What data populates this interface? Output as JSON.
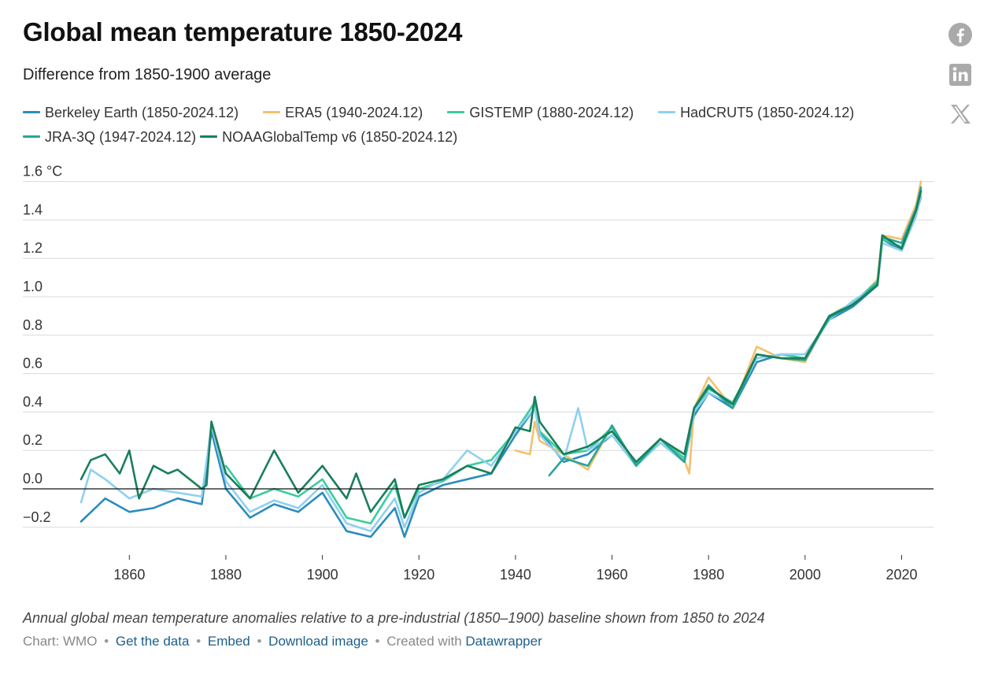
{
  "title": "Global mean temperature 1850-2024",
  "subtitle": "Difference from 1850-1900 average",
  "caption": "Annual global mean temperature anomalies relative to a pre-industrial (1850–1900) baseline shown from 1850 to 2024",
  "footer": {
    "source": "Chart: WMO",
    "get_data": "Get the data",
    "embed": "Embed",
    "download": "Download image",
    "created_with": "Created with",
    "datawrapper": "Datawrapper",
    "separator": "•"
  },
  "social": {
    "facebook_icon": "facebook-icon",
    "linkedin_icon": "linkedin-icon",
    "x_icon": "x-icon"
  },
  "legend": [
    {
      "label": "Berkeley Earth (1850-2024.12)",
      "color": "#2b8cbe"
    },
    {
      "label": "ERA5 (1940-2024.12)",
      "color": "#f5c06f"
    },
    {
      "label": "GISTEMP (1880-2024.12)",
      "color": "#3ccc9c"
    },
    {
      "label": "HadCRUT5 (1850-2024.12)",
      "color": "#8fd0f0"
    },
    {
      "label": "JRA-3Q (1947-2024.12)",
      "color": "#26a69a"
    },
    {
      "label": "NOAAGlobalTemp v6 (1850-2024.12)",
      "color": "#1a7f5a"
    }
  ],
  "chart_data": {
    "type": "line",
    "x_ticks": [
      1860,
      1880,
      1900,
      1920,
      1940,
      1960,
      1980,
      2000,
      2020
    ],
    "x_tick_labels": [
      "1860",
      "1880",
      "1900",
      "1920",
      "1940",
      "1960",
      "1980",
      "2000",
      "2020"
    ],
    "y_ticks": [
      1.6,
      1.4,
      1.2,
      1.0,
      0.8,
      0.6,
      0.4,
      0.2,
      0.0,
      -0.2
    ],
    "y_tick_labels": [
      "1.6 °C",
      "1.4",
      "1.2",
      "1.0",
      "0.8",
      "0.6",
      "0.4",
      "0.2",
      "0.0",
      "−0.2"
    ],
    "xlim": [
      1848,
      2026
    ],
    "ylim": [
      -0.35,
      1.65
    ],
    "grid": true,
    "legend_position": "top",
    "series": [
      {
        "name": "Berkeley Earth (1850-2024.12)",
        "color": "#2b8cbe",
        "x": [
          1850,
          1855,
          1860,
          1865,
          1870,
          1875,
          1877,
          1880,
          1885,
          1890,
          1895,
          1900,
          1905,
          1910,
          1915,
          1917,
          1920,
          1925,
          1930,
          1935,
          1940,
          1944,
          1945,
          1950,
          1955,
          1960,
          1965,
          1970,
          1975,
          1977,
          1980,
          1985,
          1990,
          1995,
          2000,
          2005,
          2010,
          2015,
          2016,
          2020,
          2023,
          2024
        ],
        "y": [
          -0.17,
          -0.05,
          -0.12,
          -0.1,
          -0.05,
          -0.08,
          0.3,
          0.0,
          -0.15,
          -0.08,
          -0.12,
          -0.02,
          -0.22,
          -0.25,
          -0.1,
          -0.25,
          -0.04,
          0.02,
          0.05,
          0.08,
          0.28,
          0.42,
          0.3,
          0.14,
          0.18,
          0.28,
          0.12,
          0.24,
          0.14,
          0.38,
          0.5,
          0.42,
          0.66,
          0.7,
          0.7,
          0.88,
          0.95,
          1.06,
          1.3,
          1.24,
          1.43,
          1.52
        ]
      },
      {
        "name": "ERA5 (1940-2024.12)",
        "color": "#f5c06f",
        "x": [
          1940,
          1943,
          1944,
          1945,
          1950,
          1955,
          1960,
          1965,
          1970,
          1975,
          1976,
          1977,
          1980,
          1985,
          1990,
          1995,
          2000,
          2005,
          2010,
          2015,
          2016,
          2020,
          2023,
          2024
        ],
        "y": [
          0.2,
          0.18,
          0.35,
          0.25,
          0.18,
          0.1,
          0.33,
          0.12,
          0.26,
          0.15,
          0.08,
          0.42,
          0.58,
          0.42,
          0.74,
          0.68,
          0.66,
          0.9,
          0.96,
          1.09,
          1.32,
          1.3,
          1.48,
          1.6
        ]
      },
      {
        "name": "GISTEMP (1880-2024.12)",
        "color": "#3ccc9c",
        "x": [
          1880,
          1885,
          1890,
          1895,
          1900,
          1905,
          1910,
          1915,
          1917,
          1920,
          1925,
          1930,
          1935,
          1940,
          1944,
          1945,
          1950,
          1955,
          1960,
          1965,
          1970,
          1975,
          1977,
          1980,
          1985,
          1990,
          1995,
          2000,
          2005,
          2010,
          2015,
          2016,
          2020,
          2023,
          2024
        ],
        "y": [
          0.12,
          -0.05,
          0.0,
          -0.04,
          0.05,
          -0.15,
          -0.18,
          0.02,
          -0.15,
          0.0,
          0.04,
          0.12,
          0.15,
          0.3,
          0.45,
          0.3,
          0.18,
          0.2,
          0.32,
          0.13,
          0.26,
          0.16,
          0.4,
          0.52,
          0.45,
          0.68,
          0.7,
          0.68,
          0.9,
          0.97,
          1.08,
          1.3,
          1.26,
          1.45,
          1.56
        ]
      },
      {
        "name": "HadCRUT5 (1850-2024.12)",
        "color": "#8fd0f0",
        "x": [
          1850,
          1852,
          1855,
          1860,
          1865,
          1870,
          1875,
          1877,
          1880,
          1885,
          1890,
          1895,
          1900,
          1905,
          1910,
          1915,
          1917,
          1920,
          1925,
          1930,
          1935,
          1940,
          1944,
          1945,
          1950,
          1953,
          1955,
          1960,
          1965,
          1970,
          1975,
          1977,
          1980,
          1985,
          1990,
          1995,
          2000,
          2005,
          2010,
          2015,
          2016,
          2020,
          2023,
          2024
        ],
        "y": [
          -0.07,
          0.1,
          0.05,
          -0.05,
          0.0,
          -0.02,
          -0.04,
          0.33,
          0.04,
          -0.12,
          -0.06,
          -0.1,
          0.02,
          -0.18,
          -0.22,
          -0.05,
          -0.2,
          -0.02,
          0.05,
          0.2,
          0.12,
          0.3,
          0.42,
          0.28,
          0.15,
          0.42,
          0.2,
          0.28,
          0.12,
          0.24,
          0.14,
          0.4,
          0.5,
          0.44,
          0.68,
          0.7,
          0.7,
          0.88,
          0.98,
          1.06,
          1.28,
          1.24,
          1.42,
          1.53
        ]
      },
      {
        "name": "JRA-3Q (1947-2024.12)",
        "color": "#26a69a",
        "x": [
          1947,
          1950,
          1955,
          1960,
          1965,
          1970,
          1975,
          1977,
          1980,
          1985,
          1990,
          1995,
          2000,
          2005,
          2010,
          2015,
          2016,
          2020,
          2023,
          2024
        ],
        "y": [
          0.07,
          0.16,
          0.12,
          0.33,
          0.12,
          0.26,
          0.14,
          0.42,
          0.54,
          0.42,
          0.7,
          0.68,
          0.67,
          0.89,
          0.96,
          1.07,
          1.31,
          1.28,
          1.46,
          1.57
        ]
      },
      {
        "name": "NOAAGlobalTemp v6 (1850-2024.12)",
        "color": "#1a7f5a",
        "x": [
          1850,
          1852,
          1855,
          1858,
          1860,
          1862,
          1865,
          1868,
          1870,
          1875,
          1876,
          1877,
          1880,
          1885,
          1890,
          1895,
          1900,
          1905,
          1907,
          1910,
          1915,
          1917,
          1920,
          1925,
          1930,
          1935,
          1940,
          1943,
          1944,
          1945,
          1950,
          1955,
          1960,
          1965,
          1970,
          1975,
          1977,
          1980,
          1985,
          1990,
          1995,
          2000,
          2005,
          2010,
          2015,
          2016,
          2020,
          2023,
          2024
        ],
        "y": [
          0.05,
          0.15,
          0.18,
          0.08,
          0.2,
          -0.05,
          0.12,
          0.08,
          0.1,
          0.0,
          0.02,
          0.35,
          0.08,
          -0.05,
          0.2,
          -0.02,
          0.12,
          -0.05,
          0.08,
          -0.12,
          0.05,
          -0.15,
          0.02,
          0.05,
          0.12,
          0.08,
          0.32,
          0.3,
          0.48,
          0.35,
          0.18,
          0.22,
          0.3,
          0.14,
          0.26,
          0.18,
          0.42,
          0.53,
          0.44,
          0.7,
          0.68,
          0.68,
          0.9,
          0.96,
          1.06,
          1.32,
          1.25,
          1.45,
          1.55
        ]
      }
    ]
  }
}
